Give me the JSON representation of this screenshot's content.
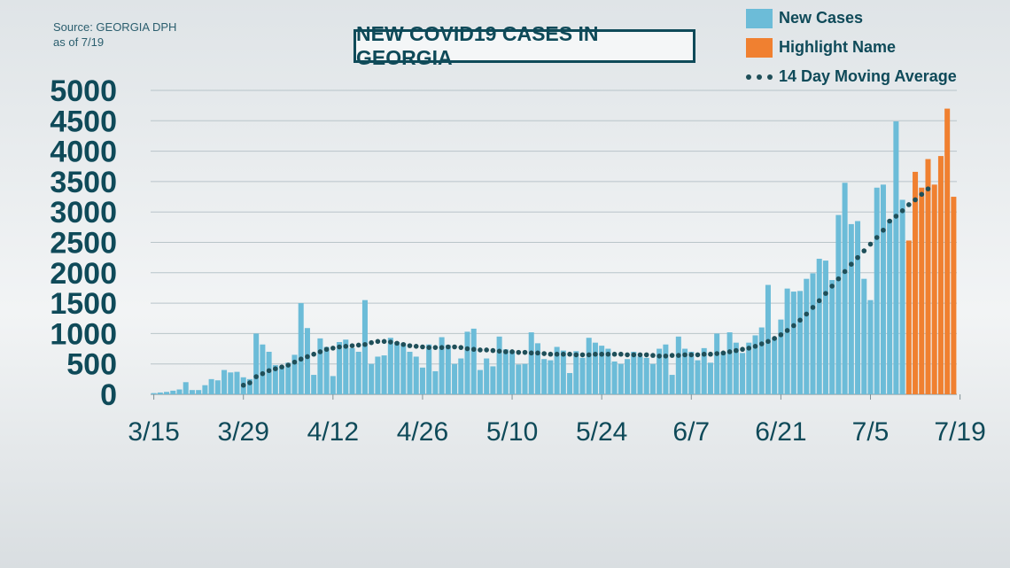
{
  "source": {
    "line1": "Source: GEORGIA DPH",
    "line2": "as of 7/19"
  },
  "title": "NEW COVID19 CASES IN GEORGIA",
  "legend": {
    "new_cases": "New Cases",
    "highlight": "Highlight Name",
    "moving_avg": "14 Day Moving Average"
  },
  "colors": {
    "new_cases": "#6cbcd8",
    "highlight": "#f08030",
    "moving_avg": "#1f4f59",
    "axis_text": "#0f4a59",
    "grid": "#b8c4c9"
  },
  "chart_data": {
    "type": "bar",
    "start_date": "3/15",
    "ylim": [
      0,
      5000
    ],
    "yticks": [
      0,
      500,
      1000,
      1500,
      2000,
      2500,
      3000,
      3500,
      4000,
      4500,
      5000
    ],
    "xtick_labels": [
      "3/15",
      "3/29",
      "4/12",
      "4/26",
      "5/10",
      "5/24",
      "6/7",
      "6/21",
      "7/5",
      "7/19"
    ],
    "grid": true,
    "legend_position": "top-right",
    "series": [
      {
        "name": "New Cases",
        "values": [
          20,
          30,
          40,
          60,
          80,
          200,
          70,
          70,
          150,
          250,
          230,
          400,
          360,
          370,
          280,
          250,
          1000,
          820,
          700,
          480,
          460,
          520,
          650,
          1500,
          1090,
          320,
          920,
          780,
          300,
          860,
          900,
          760,
          700,
          1550,
          500,
          620,
          640,
          930,
          860,
          840,
          700,
          620,
          440,
          820,
          380,
          940,
          810,
          500,
          590,
          1030,
          1080,
          400,
          590,
          460,
          950,
          740,
          720,
          490,
          500,
          1020,
          840,
          580,
          560,
          780,
          720,
          350,
          710,
          600,
          930,
          850,
          800,
          750,
          540,
          500,
          580,
          700,
          620,
          600,
          500,
          750,
          820,
          320,
          950,
          750,
          700,
          560,
          760,
          520,
          1000,
          700,
          1020,
          850,
          680,
          850,
          970,
          1100,
          1800,
          920,
          1230,
          1740,
          1690,
          1700,
          1900,
          1990,
          2230,
          2200,
          1880,
          2950,
          3480,
          2800,
          2850,
          1900,
          1550,
          3400,
          3450,
          2870,
          4490,
          3200
        ]
      },
      {
        "name": "Highlight Name",
        "values": [
          2530,
          3660,
          3400,
          3870,
          3450,
          3920,
          4700,
          3250
        ]
      },
      {
        "name": "14 Day Moving Average",
        "values": [
          null,
          null,
          null,
          null,
          null,
          null,
          null,
          null,
          null,
          null,
          null,
          null,
          null,
          null,
          150,
          190,
          290,
          340,
          390,
          420,
          450,
          480,
          530,
          580,
          620,
          660,
          700,
          740,
          760,
          780,
          790,
          800,
          810,
          820,
          850,
          870,
          870,
          860,
          840,
          820,
          800,
          790,
          780,
          770,
          770,
          770,
          780,
          780,
          770,
          750,
          740,
          730,
          730,
          720,
          710,
          700,
          700,
          690,
          690,
          680,
          680,
          670,
          660,
          660,
          660,
          660,
          650,
          650,
          650,
          660,
          660,
          660,
          660,
          660,
          650,
          650,
          650,
          650,
          640,
          630,
          630,
          640,
          640,
          650,
          650,
          650,
          660,
          660,
          670,
          680,
          700,
          720,
          740,
          760,
          790,
          830,
          870,
          920,
          980,
          1050,
          1130,
          1220,
          1320,
          1430,
          1540,
          1660,
          1780,
          1900,
          2020,
          2140,
          2250,
          2360,
          2470,
          2580,
          2700,
          2850,
          2930,
          3020,
          3120,
          3200,
          3290,
          3380
        ]
      }
    ]
  }
}
